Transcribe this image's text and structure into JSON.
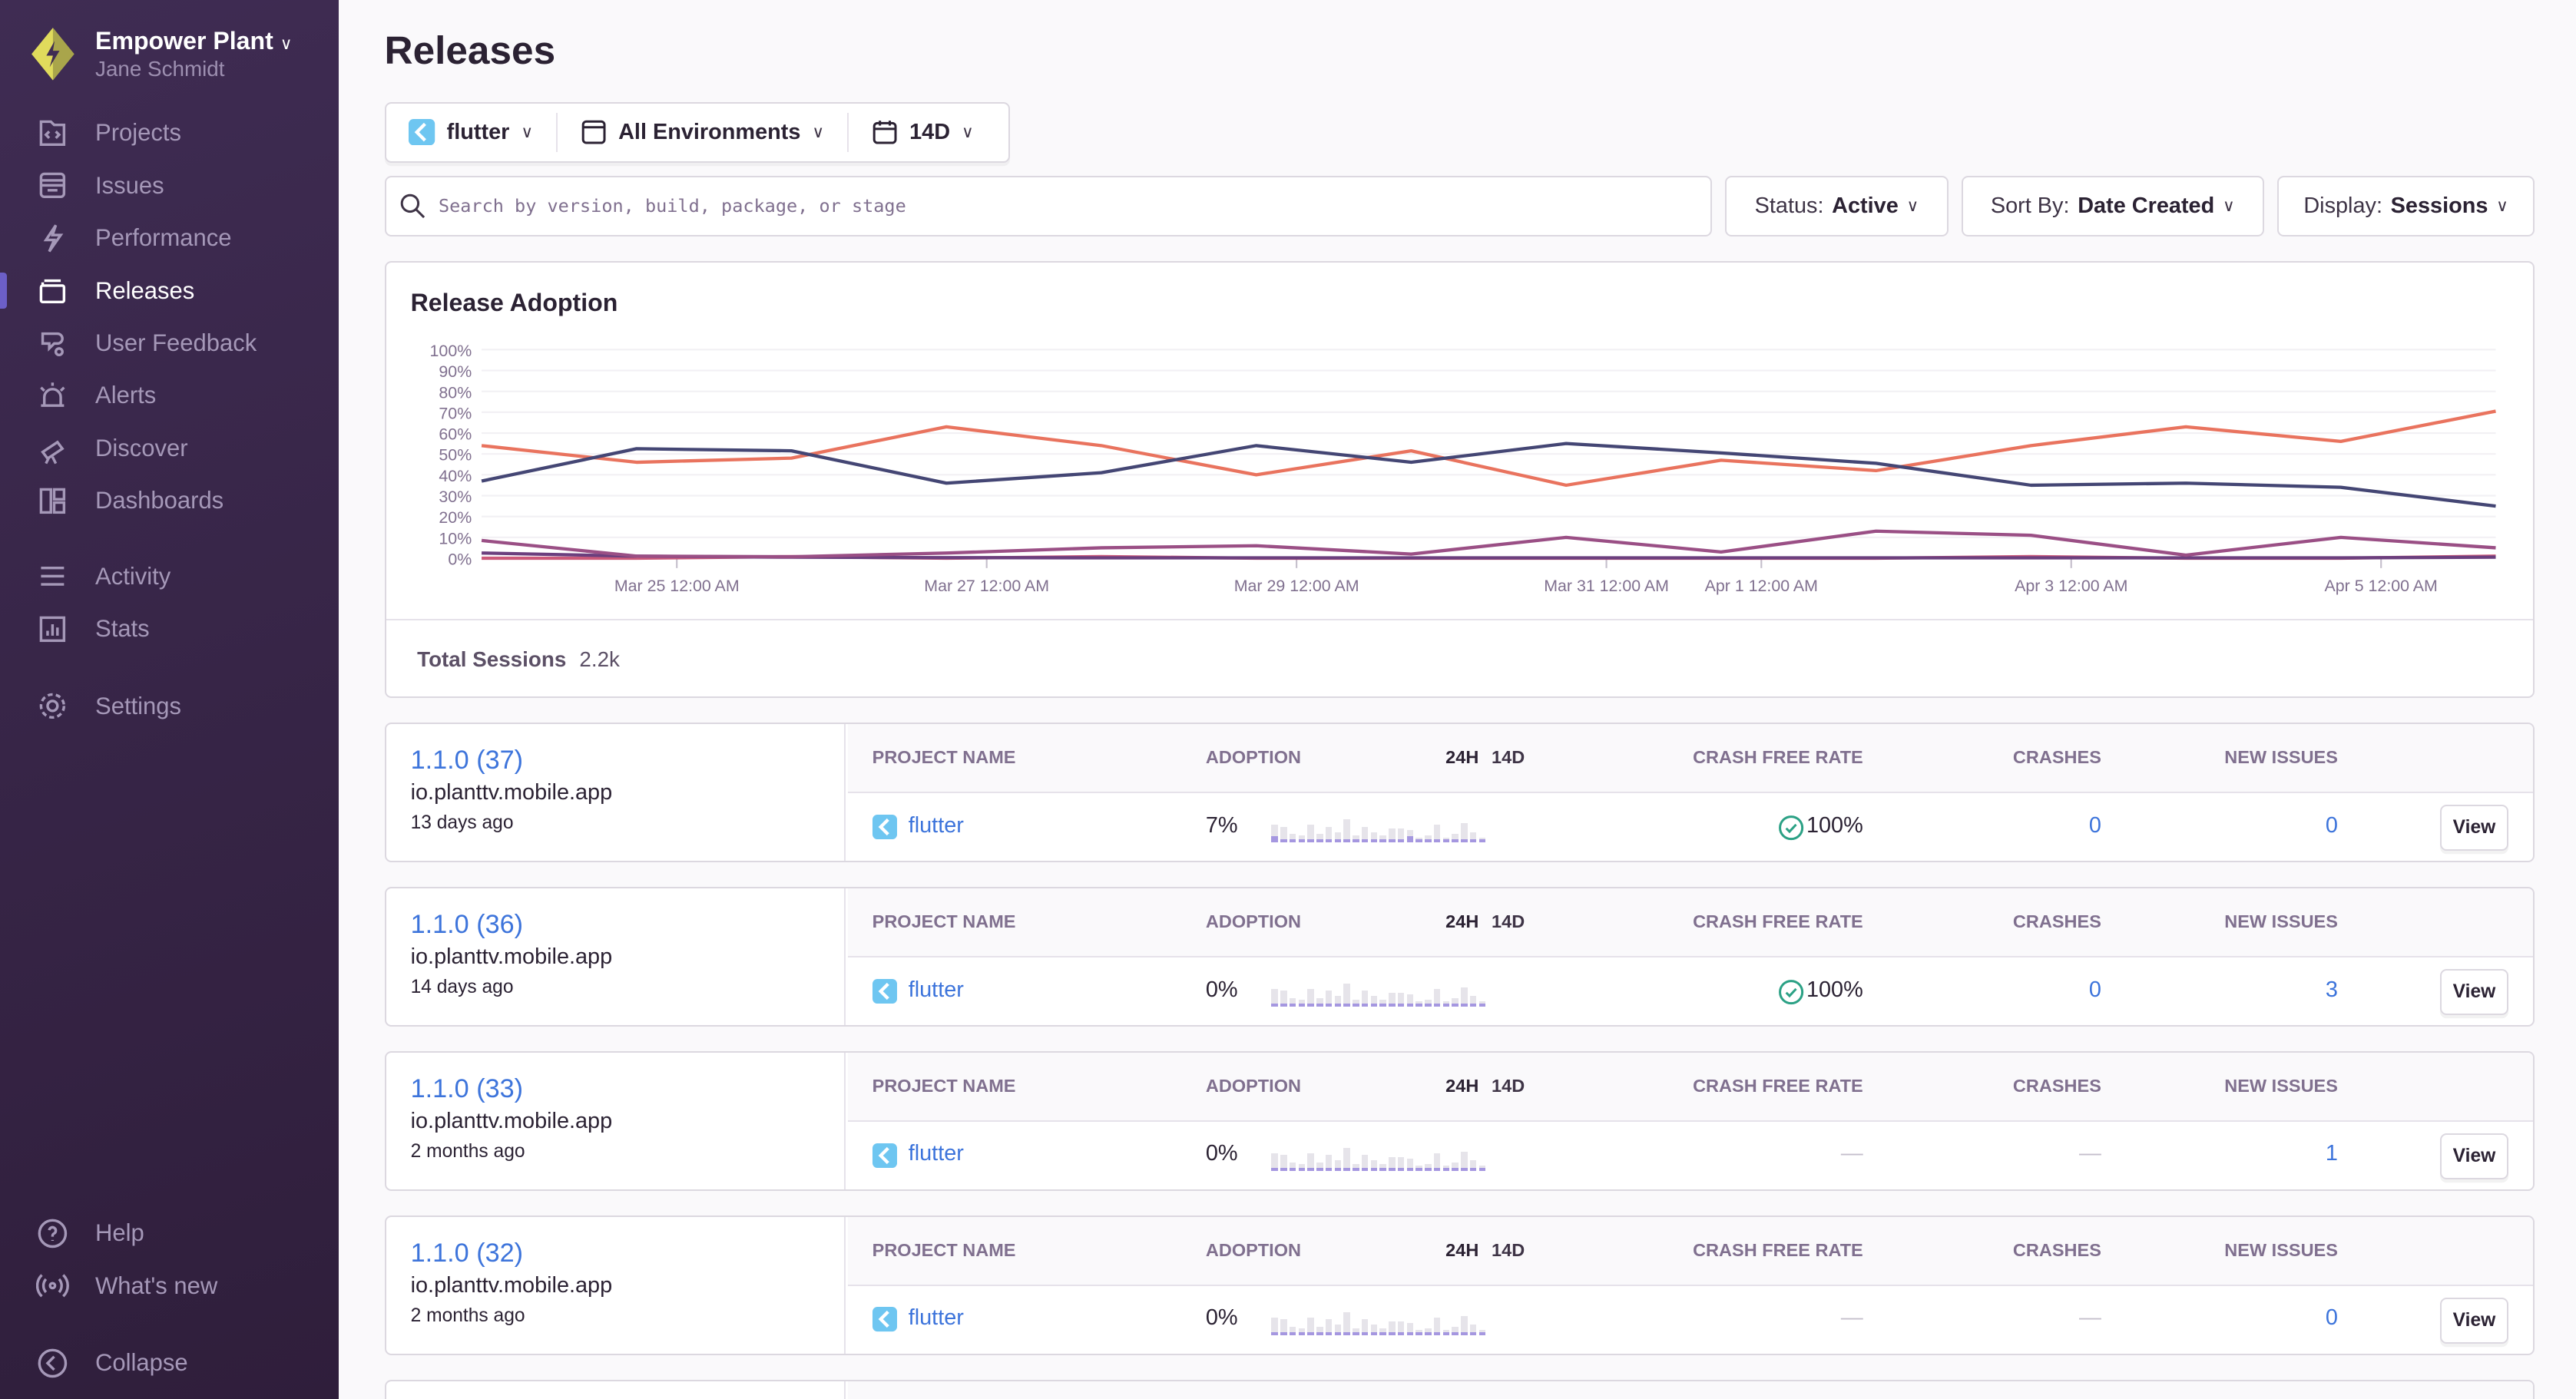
{
  "org": {
    "name": "Empower Plant",
    "user": "Jane Schmidt"
  },
  "sidebar": {
    "items": [
      {
        "label": "Projects",
        "icon": "projects-icon"
      },
      {
        "label": "Issues",
        "icon": "issues-icon"
      },
      {
        "label": "Performance",
        "icon": "lightning-icon"
      },
      {
        "label": "Releases",
        "icon": "releases-icon",
        "active": true
      },
      {
        "label": "User Feedback",
        "icon": "feedback-icon"
      },
      {
        "label": "Alerts",
        "icon": "siren-icon"
      },
      {
        "label": "Discover",
        "icon": "telescope-icon"
      },
      {
        "label": "Dashboards",
        "icon": "dashboard-icon"
      },
      {
        "label": "Activity",
        "icon": "list-icon"
      },
      {
        "label": "Stats",
        "icon": "stats-icon"
      },
      {
        "label": "Settings",
        "icon": "gear-icon"
      }
    ],
    "bottom": [
      {
        "label": "Help",
        "icon": "question-icon"
      },
      {
        "label": "What's new",
        "icon": "broadcast-icon"
      },
      {
        "label": "Collapse",
        "icon": "collapse-icon"
      }
    ]
  },
  "header": {
    "title": "Releases"
  },
  "filters": {
    "project": "flutter",
    "environment": "All Environments",
    "period": "14D"
  },
  "search": {
    "placeholder": "Search by version, build, package, or stage"
  },
  "dropdowns": {
    "status_label": "Status:",
    "status": "Active",
    "sort_label": "Sort By:",
    "sort": "Date Created",
    "display_label": "Display:",
    "display": "Sessions"
  },
  "colors": {
    "accent": "#6c5fc7",
    "link": "#3d74db",
    "sidebar": "#3f2c53"
  },
  "chart_data": {
    "type": "line",
    "title": "Release Adoption",
    "ylim": [
      0,
      100
    ],
    "yticks": [
      "0%",
      "10%",
      "20%",
      "30%",
      "40%",
      "50%",
      "60%",
      "70%",
      "80%",
      "90%",
      "100%"
    ],
    "x": [
      "Mar 23",
      "Mar 24",
      "Mar 25",
      "Mar 26",
      "Mar 27",
      "Mar 28",
      "Mar 29",
      "Mar 30",
      "Mar 31",
      "Apr 1",
      "Apr 2",
      "Apr 3",
      "Apr 4",
      "Apr 5"
    ],
    "xticks": [
      {
        "label": "Mar 25 12:00 AM",
        "at": "Mar 25"
      },
      {
        "label": "Mar 27 12:00 AM",
        "at": "Mar 27"
      },
      {
        "label": "Mar 29 12:00 AM",
        "at": "Mar 29"
      },
      {
        "label": "Mar 31 12:00 AM",
        "at": "Mar 31"
      },
      {
        "label": "Apr 1 12:00 AM",
        "at": "Apr 1"
      },
      {
        "label": "Apr 3 12:00 AM",
        "at": "Apr 3"
      },
      {
        "label": "Apr 5 12:00 AM",
        "at": "Apr 5"
      }
    ],
    "grid": true,
    "series": [
      {
        "color": "#444674",
        "values": [
          37,
          52.5,
          51.5,
          36,
          41,
          54,
          46,
          55,
          50.5,
          45.5,
          35,
          36,
          34,
          25
        ]
      },
      {
        "color": "#e9735e",
        "values": [
          54,
          46,
          48,
          63,
          54,
          40,
          51.5,
          35,
          47,
          42,
          54,
          63,
          56,
          70.5
        ]
      },
      {
        "color": "#9a4f85",
        "values": [
          8.5,
          1,
          0.7,
          2.5,
          5,
          6,
          2,
          10,
          3,
          13,
          11,
          1.5,
          10,
          5
        ]
      },
      {
        "color": "#6b3f7e",
        "values": [
          2.5,
          1,
          0.5,
          0.3,
          0.2,
          0.2,
          0.2,
          0.2,
          0.2,
          0.2,
          0.2,
          0.2,
          0.2,
          0.5
        ]
      },
      {
        "color": "#cc5a7a",
        "values": [
          0,
          0,
          0.8,
          0,
          0.8,
          0,
          0,
          0,
          0,
          0,
          0.8,
          0,
          0,
          1
        ]
      }
    ]
  },
  "chart_footer": {
    "label": "Total Sessions",
    "value": "2.2k"
  },
  "table_headers": {
    "project": "PROJECT NAME",
    "adoption": "ADOPTION",
    "h24": "24H",
    "d14": "14D",
    "crash_free": "CRASH FREE RATE",
    "crashes": "CRASHES",
    "new_issues": "NEW ISSUES",
    "view": "View"
  },
  "releases": [
    {
      "version": "1.1.0 (37)",
      "package": "io.planttv.mobile.app",
      "age": "13 days ago",
      "project": "flutter",
      "adoption": "7%",
      "crash_free": "100%",
      "crashes": "0",
      "new_issues": "0",
      "history": [
        8,
        7,
        3,
        2,
        8,
        3,
        7,
        4,
        11,
        2,
        7,
        4,
        2,
        6,
        6,
        5,
        1,
        2,
        8,
        1,
        3,
        9,
        4,
        1
      ]
    },
    {
      "version": "1.1.0 (36)",
      "package": "io.planttv.mobile.app",
      "age": "14 days ago",
      "project": "flutter",
      "adoption": "0%",
      "crash_free": "100%",
      "crashes": "0",
      "new_issues": "3",
      "history": [
        8,
        7,
        3,
        2,
        8,
        3,
        7,
        4,
        11,
        2,
        7,
        4,
        2,
        6,
        6,
        5,
        1,
        2,
        8,
        1,
        3,
        9,
        4,
        1
      ]
    },
    {
      "version": "1.1.0 (33)",
      "package": "io.planttv.mobile.app",
      "age": "2 months ago",
      "project": "flutter",
      "adoption": "0%",
      "crash_free": "—",
      "crashes": "—",
      "new_issues": "1",
      "history": [
        8,
        7,
        3,
        2,
        8,
        3,
        7,
        4,
        11,
        2,
        7,
        4,
        2,
        6,
        6,
        5,
        1,
        2,
        8,
        1,
        3,
        9,
        4,
        1
      ]
    },
    {
      "version": "1.1.0 (32)",
      "package": "io.planttv.mobile.app",
      "age": "2 months ago",
      "project": "flutter",
      "adoption": "0%",
      "crash_free": "—",
      "crashes": "—",
      "new_issues": "0",
      "history": [
        8,
        7,
        3,
        2,
        8,
        3,
        7,
        4,
        11,
        2,
        7,
        4,
        2,
        6,
        6,
        5,
        1,
        2,
        8,
        1,
        3,
        9,
        4,
        1
      ]
    }
  ]
}
